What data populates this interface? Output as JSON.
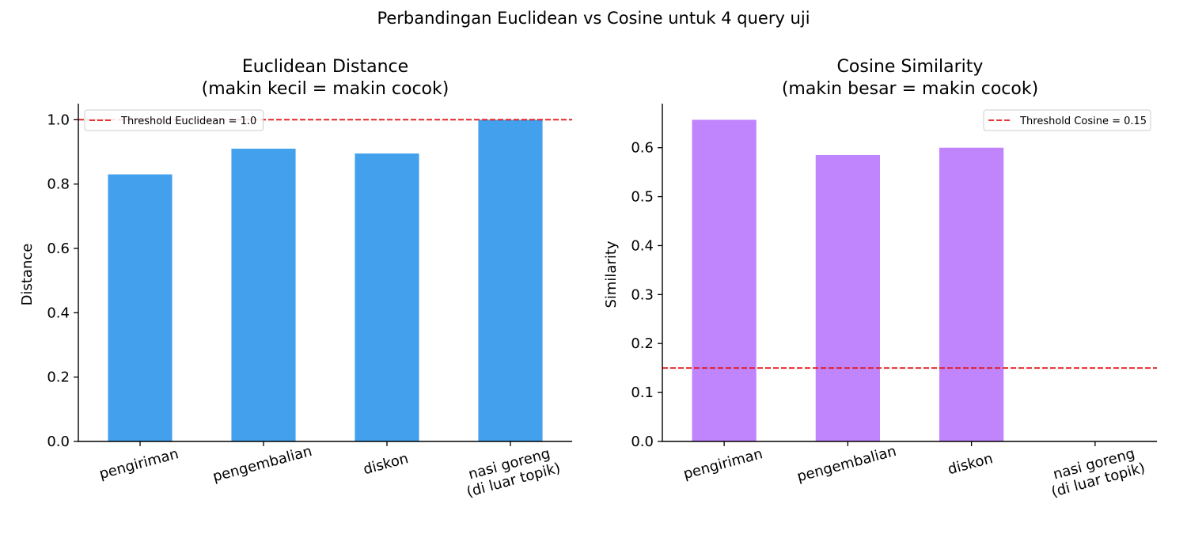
{
  "figure": {
    "suptitle": "Perbandingan Euclidean vs Cosine untuk 4 query uji"
  },
  "chart_data": [
    {
      "type": "bar",
      "title_line1": "Euclidean Distance",
      "title_line2": "(makin kecil = makin cocok)",
      "ylabel": "Distance",
      "categories": [
        [
          "pengiriman"
        ],
        [
          "pengembalian"
        ],
        [
          "diskon"
        ],
        [
          "nasi goreng",
          "(di luar topik)"
        ]
      ],
      "values": [
        0.83,
        0.91,
        0.895,
        1.0
      ],
      "ylim": [
        0,
        1.05
      ],
      "yticks": [
        0.0,
        0.2,
        0.4,
        0.6,
        0.8,
        1.0
      ],
      "bar_color": "#42a0ed",
      "threshold": {
        "value": 1.0,
        "label": "Threshold Euclidean = 1.0",
        "color": "#e31a1c"
      },
      "legend": "top-left"
    },
    {
      "type": "bar",
      "title_line1": "Cosine Similarity",
      "title_line2": "(makin besar = makin cocok)",
      "ylabel": "Similarity",
      "categories": [
        [
          "pengiriman"
        ],
        [
          "pengembalian"
        ],
        [
          "diskon"
        ],
        [
          "nasi goreng",
          "(di luar topik)"
        ]
      ],
      "values": [
        0.657,
        0.585,
        0.6,
        0.0
      ],
      "ylim": [
        0,
        0.69
      ],
      "yticks": [
        0.0,
        0.1,
        0.2,
        0.3,
        0.4,
        0.5,
        0.6
      ],
      "bar_color": "#c084fc",
      "threshold": {
        "value": 0.15,
        "label": "Threshold Cosine = 0.15",
        "color": "#e31a1c"
      },
      "legend": "top-right"
    }
  ]
}
